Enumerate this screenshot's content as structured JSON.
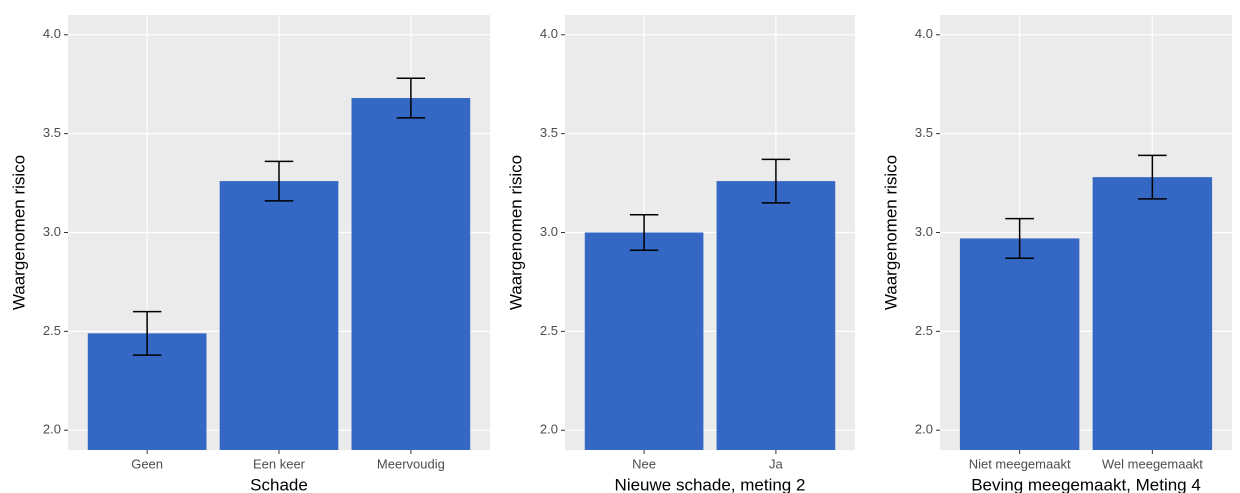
{
  "chart_data": [
    {
      "type": "bar",
      "x_label": "Schade",
      "y_label": "Waargenomen risico",
      "categories": [
        "Geen",
        "Een keer",
        "Meervoudig"
      ],
      "values": [
        2.49,
        3.26,
        3.68
      ],
      "errors": [
        0.11,
        0.1,
        0.1
      ],
      "color": "#3567c4",
      "ylim": [
        1.9,
        4.1
      ],
      "yticks": [
        {
          "value": 2,
          "label": "2.0"
        },
        2.5,
        {
          "value": 3,
          "label": "3.0"
        },
        3.5,
        {
          "value": 4,
          "label": "4.0"
        }
      ],
      "grid": true
    },
    {
      "type": "bar",
      "x_label": "Nieuwe schade, meting 2",
      "y_label": "Waargenomen risico",
      "categories": [
        "Nee",
        "Ja"
      ],
      "values": [
        3.0,
        3.26
      ],
      "errors": [
        0.09,
        0.11
      ],
      "color": "#3567c4",
      "ylim": [
        1.9,
        4.1
      ],
      "yticks": [
        {
          "value": 2,
          "label": "2.0"
        },
        2.5,
        {
          "value": 3,
          "label": "3.0"
        },
        3.5,
        {
          "value": 4,
          "label": "4.0"
        }
      ],
      "grid": true
    },
    {
      "type": "bar",
      "x_label": "Beving meegemaakt, Meting 4",
      "y_label": "Waargenomen risico",
      "categories": [
        "Niet meegemaakt",
        "Wel meegemaakt"
      ],
      "values": [
        2.97,
        3.28
      ],
      "errors": [
        0.1,
        0.11
      ],
      "color": "#3567c4",
      "ylim": [
        1.9,
        4.1
      ],
      "yticks": [
        {
          "value": 2,
          "label": "2.0"
        },
        2.5,
        {
          "value": 3,
          "label": "3.0"
        },
        3.5,
        {
          "value": 4,
          "label": "4.0"
        }
      ],
      "grid": true
    }
  ]
}
